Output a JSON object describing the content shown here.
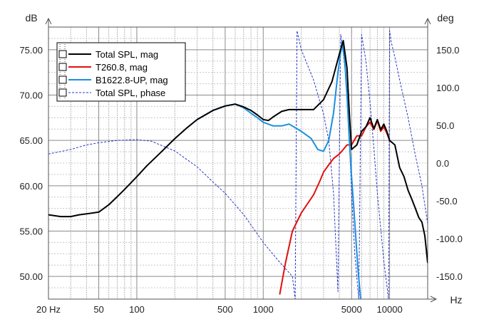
{
  "chart_data": {
    "type": "line",
    "left_unit": "dB",
    "right_unit": "deg",
    "x_unit": "Hz",
    "x_scale": "log",
    "xlim": [
      20,
      20000
    ],
    "ylim_left": [
      47.5,
      77.5
    ],
    "ylim_right": [
      -180,
      180
    ],
    "grid": true,
    "legend_position": "top-left",
    "x_ticks": [
      {
        "value": 20,
        "label": "20 Hz"
      },
      {
        "value": 50,
        "label": "50"
      },
      {
        "value": 100,
        "label": "100"
      },
      {
        "value": 500,
        "label": "500"
      },
      {
        "value": 1000,
        "label": "1000"
      },
      {
        "value": 5000,
        "label": "5000"
      },
      {
        "value": 10000,
        "label": "10000"
      }
    ],
    "y_left_ticks": [
      {
        "value": 50,
        "label": "50.00"
      },
      {
        "value": 55,
        "label": "55.00"
      },
      {
        "value": 60,
        "label": "60.00"
      },
      {
        "value": 65,
        "label": "65.00"
      },
      {
        "value": 70,
        "label": "70.00"
      },
      {
        "value": 75,
        "label": "75.00"
      }
    ],
    "y_right_ticks": [
      {
        "value": 150,
        "label": "150.0"
      },
      {
        "value": 100,
        "label": "100.0"
      },
      {
        "value": 50,
        "label": "50.0"
      },
      {
        "value": 0,
        "label": "0.0"
      },
      {
        "value": -50,
        "label": "-50.0"
      },
      {
        "value": -100,
        "label": "-100.0"
      },
      {
        "value": -150,
        "label": "-150.0"
      }
    ],
    "series": [
      {
        "name": "Total SPL, mag",
        "color": "#000000",
        "axis": "left",
        "style": "solid",
        "x": [
          20,
          25,
          30,
          35,
          40,
          45,
          50,
          60,
          70,
          80,
          100,
          120,
          150,
          200,
          250,
          300,
          400,
          500,
          600,
          700,
          800,
          900,
          1000,
          1100,
          1200,
          1400,
          1600,
          2000,
          2500,
          3000,
          3500,
          4000,
          4300,
          4600,
          4800,
          5000,
          5500,
          6000,
          6500,
          7000,
          7500,
          8000,
          8500,
          9000,
          9500,
          10000,
          11000,
          12000,
          13000,
          14000,
          15000,
          16000,
          17000,
          18000,
          19000,
          20000
        ],
        "y": [
          56.8,
          56.6,
          56.6,
          56.8,
          56.9,
          57.0,
          57.1,
          57.9,
          58.8,
          59.6,
          61.0,
          62.2,
          63.5,
          65.2,
          66.4,
          67.3,
          68.3,
          68.8,
          69.0,
          68.7,
          68.3,
          67.8,
          67.3,
          67.2,
          67.6,
          68.2,
          68.4,
          68.4,
          68.4,
          69.5,
          71.5,
          74.5,
          76.0,
          73.0,
          68.0,
          64.0,
          64.5,
          66.0,
          66.5,
          67.5,
          66.3,
          67.3,
          66.2,
          66.8,
          66.0,
          65.0,
          64.5,
          62.0,
          61.0,
          59.5,
          58.5,
          57.5,
          56.5,
          56.0,
          54.5,
          51.5
        ]
      },
      {
        "name": "T260.8, mag",
        "color": "#e01010",
        "axis": "left",
        "style": "solid",
        "x": [
          1350,
          1500,
          1700,
          2000,
          2500,
          2800,
          3000,
          3300,
          3600,
          4000,
          4300,
          4600,
          5000,
          5500,
          6000,
          6500,
          7000,
          7500,
          8000,
          8500,
          9000,
          9500,
          10000
        ],
        "y": [
          48.0,
          51.5,
          55.0,
          57.0,
          59.0,
          60.5,
          61.5,
          62.3,
          63.0,
          63.5,
          64.0,
          64.5,
          64.5,
          65.5,
          65.5,
          66.5,
          67.0,
          66.2,
          67.2,
          66.0,
          66.5,
          65.8,
          65.0
        ]
      },
      {
        "name": "B1622.8-UP, mag",
        "color": "#1a8fe0",
        "axis": "left",
        "style": "solid",
        "x": [
          300,
          400,
          500,
          600,
          700,
          800,
          900,
          1000,
          1200,
          1400,
          1600,
          2000,
          2400,
          2700,
          3000,
          3300,
          3600,
          3900,
          4200,
          4400,
          4600,
          4800,
          5000,
          5300,
          5600,
          5900
        ],
        "y": [
          67.3,
          68.3,
          68.8,
          69.0,
          68.6,
          68.0,
          67.5,
          67.0,
          66.6,
          66.6,
          66.8,
          66.0,
          65.2,
          64.0,
          63.8,
          65.0,
          68.0,
          72.5,
          75.8,
          74.0,
          70.0,
          65.0,
          61.0,
          56.0,
          51.0,
          47.5
        ]
      },
      {
        "name": "Total SPL, phase",
        "color": "#2a36c8",
        "axis": "right",
        "style": "dashed",
        "x": [
          20,
          30,
          40,
          50,
          70,
          100,
          130,
          200,
          300,
          400,
          500,
          700,
          1000,
          1300,
          1700,
          1790,
          1850,
          2000,
          2500,
          3000,
          3300,
          3600,
          3900,
          4100,
          4300,
          4600,
          4800,
          5000,
          5300,
          5700,
          6000,
          6500,
          7000,
          7500,
          8000,
          9000,
          9800,
          10000,
          10300,
          11000,
          12000,
          14000,
          16000,
          18000,
          20000
        ],
        "y": [
          12,
          18,
          24,
          27,
          30,
          31,
          29,
          16,
          -5,
          -25,
          -40,
          -68,
          -105,
          -128,
          -150,
          -180,
          175,
          150,
          110,
          65,
          30,
          -40,
          -170,
          170,
          145,
          100,
          30,
          -40,
          -120,
          -180,
          170,
          135,
          80,
          20,
          -40,
          -130,
          -180,
          175,
          160,
          140,
          110,
          60,
          10,
          -30,
          -80
        ]
      }
    ]
  }
}
